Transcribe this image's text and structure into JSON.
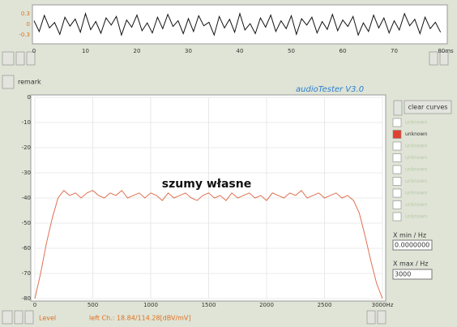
{
  "chart_data": [
    {
      "type": "line",
      "x": [
        0,
        1,
        2,
        3,
        4,
        5,
        6,
        7,
        8,
        9,
        10,
        11,
        12,
        13,
        14,
        15,
        16,
        17,
        18,
        19,
        20,
        21,
        22,
        23,
        24,
        25,
        26,
        27,
        28,
        29,
        30,
        31,
        32,
        33,
        34,
        35,
        36,
        37,
        38,
        39,
        40,
        41,
        42,
        43,
        44,
        45,
        46,
        47,
        48,
        49,
        50,
        51,
        52,
        53,
        54,
        55,
        56,
        57,
        58,
        59,
        60,
        61,
        62,
        63,
        64,
        65,
        66,
        67,
        68,
        69,
        70,
        71,
        72,
        73,
        74,
        75,
        76,
        77,
        78,
        79
      ],
      "series": [
        {
          "color": "#111111",
          "values": [
            0.1,
            -0.2,
            0.25,
            -0.1,
            0.05,
            -0.28,
            0.2,
            -0.05,
            0.15,
            -0.22,
            0.3,
            -0.15,
            0.08,
            -0.25,
            0.18,
            -0.02,
            0.22,
            -0.3,
            0.12,
            -0.08,
            0.26,
            -0.18,
            0.04,
            -0.24,
            0.2,
            -0.12,
            0.28,
            -0.06,
            0.1,
            -0.26,
            0.16,
            -0.2,
            0.24,
            -0.04,
            0.06,
            -0.3,
            0.22,
            -0.1,
            0.14,
            -0.22,
            0.3,
            -0.16,
            0.02,
            -0.26,
            0.18,
            -0.08,
            0.26,
            -0.2,
            0.1,
            -0.12,
            0.24,
            -0.28,
            0.16,
            -0.02,
            0.2,
            -0.24,
            0.08,
            -0.14,
            0.28,
            -0.18,
            0.12,
            -0.06,
            0.22,
            -0.3,
            0.04,
            -0.2,
            0.26,
            -0.1,
            0.18,
            -0.24,
            0.1,
            -0.16,
            0.3,
            -0.04,
            0.14,
            -0.26,
            0.2,
            -0.12,
            0.06,
            -0.22
          ]
        }
      ],
      "xlim": [
        0,
        80
      ],
      "xticks": [
        0,
        10,
        20,
        30,
        40,
        50,
        60,
        70,
        {
          "value": 80,
          "label": "80ms"
        }
      ],
      "ylim": [
        -0.5,
        0.5
      ],
      "yticks": [
        -0.3,
        0,
        0.3
      ],
      "grid": false
    },
    {
      "type": "line",
      "title": "szumy własne",
      "x": [
        0,
        50,
        100,
        150,
        200,
        250,
        300,
        350,
        400,
        450,
        500,
        550,
        600,
        650,
        700,
        750,
        800,
        850,
        900,
        950,
        1000,
        1050,
        1100,
        1150,
        1200,
        1250,
        1300,
        1350,
        1400,
        1450,
        1500,
        1550,
        1600,
        1650,
        1700,
        1750,
        1800,
        1850,
        1900,
        1950,
        2000,
        2050,
        2100,
        2150,
        2200,
        2250,
        2300,
        2350,
        2400,
        2450,
        2500,
        2550,
        2600,
        2650,
        2700,
        2750,
        2800,
        2850,
        2900,
        2950,
        3000
      ],
      "series": [
        {
          "color": "#e07050",
          "values": [
            -80,
            -70,
            -58,
            -48,
            -40,
            -37,
            -39,
            -38,
            -40,
            -38,
            -37,
            -39,
            -40,
            -38,
            -39,
            -37,
            -40,
            -39,
            -38,
            -40,
            -38,
            -39,
            -41,
            -38,
            -40,
            -39,
            -38,
            -40,
            -41,
            -39,
            -38,
            -40,
            -39,
            -41,
            -38,
            -40,
            -39,
            -38,
            -40,
            -39,
            -41,
            -38,
            -39,
            -40,
            -38,
            -39,
            -37,
            -40,
            -39,
            -38,
            -40,
            -39,
            -38,
            -40,
            -39,
            -41,
            -46,
            -55,
            -65,
            -74,
            -80
          ]
        }
      ],
      "xlim": [
        0,
        3000
      ],
      "xticks": [
        0,
        500,
        1000,
        1500,
        2000,
        2500,
        {
          "value": 3000,
          "label": "3000Hz"
        }
      ],
      "ylim": [
        -80,
        0
      ],
      "yticks": [
        0,
        -10,
        -20,
        -30,
        -40,
        -50,
        -60,
        -70,
        -80
      ],
      "grid": true
    }
  ],
  "ui": {
    "remark": "remark",
    "app_title": "audioTester  V3.0",
    "clear_button": "clear curves",
    "curves": [
      {
        "label": "unknown",
        "checked": false
      },
      {
        "label": "unknown",
        "checked": true
      },
      {
        "label": "unknown",
        "checked": false
      },
      {
        "label": "unknown",
        "checked": false
      },
      {
        "label": "unknown",
        "checked": false
      },
      {
        "label": "unknown",
        "checked": false
      },
      {
        "label": "unknown",
        "checked": false
      },
      {
        "label": "unknown",
        "checked": false
      },
      {
        "label": "unknown",
        "checked": false
      }
    ],
    "xmin_label": "X min / Hz",
    "xmin_value": "0.0000000",
    "xmax_label": "X max / Hz",
    "xmax_value": "3000",
    "level_label": "Level",
    "status": "left Ch.: 18.84/114.28[dBV/mV]"
  }
}
